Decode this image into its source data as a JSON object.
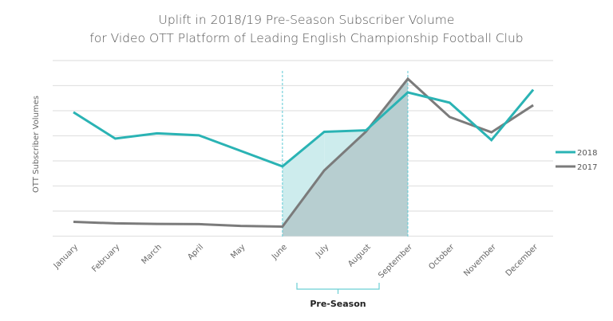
{
  "chart_data": {
    "type": "line",
    "title": "Uplift in 2018/19 Pre-Season Subscriber Volume",
    "subtitle": "for Video OTT Platform of Leading English Championship Football Club",
    "xlabel": "",
    "ylabel": "OTT Subscriber Volumes",
    "y_units_note": "relative index (one unit per gridline); no y tick labels shown",
    "ylim": [
      0,
      7
    ],
    "grid": true,
    "legend_position": "right",
    "categories": [
      "January",
      "February",
      "March",
      "April",
      "May",
      "June",
      "July",
      "August",
      "September",
      "October",
      "November",
      "December"
    ],
    "series": [
      {
        "name": "2018",
        "color": "#2ab3b4",
        "values": [
          4.94,
          3.89,
          4.1,
          4.02,
          3.4,
          2.78,
          4.16,
          4.22,
          5.73,
          5.32,
          3.83,
          5.84
        ]
      },
      {
        "name": "2017",
        "color": "#7b7b7b",
        "values": [
          0.57,
          0.51,
          0.49,
          0.48,
          0.41,
          0.38,
          2.62,
          4.17,
          6.27,
          4.75,
          4.14,
          5.22
        ]
      }
    ],
    "highlight": {
      "label": "Pre-Season",
      "from_category": "June",
      "to_category": "September",
      "bracket_from": "June",
      "bracket_to": "September"
    },
    "colors": {
      "grid": "#e2e2e2",
      "marker_line": "#5fc9d6",
      "fill_under_2017": "#b7ced0",
      "fill_uplift": "#cdeced",
      "fill_decline": "#dcdcdc",
      "bracket": "#6ccfd4"
    }
  }
}
